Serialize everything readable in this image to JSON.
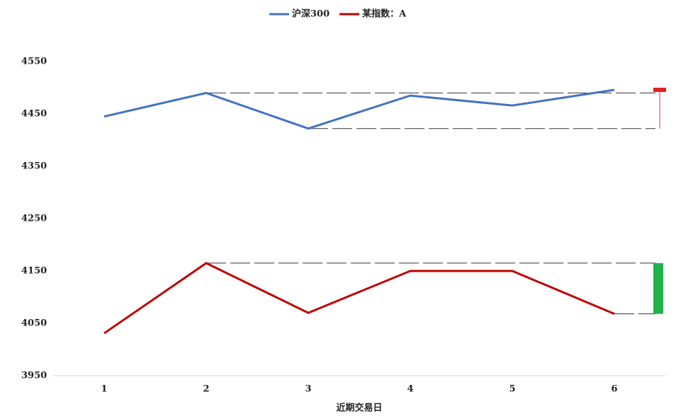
{
  "chart_data": {
    "type": "line",
    "x_label": "近期交易日",
    "categories": [
      "1",
      "2",
      "3",
      "4",
      "5",
      "6"
    ],
    "series": [
      {
        "name": "沪深300",
        "color": "#4472c4",
        "values": [
          4445,
          4490,
          4422,
          4485,
          4466,
          4496
        ]
      },
      {
        "name": "某指数：A",
        "color": "#c00000",
        "values": [
          4031,
          4165,
          4070,
          4150,
          4150,
          4068
        ]
      }
    ],
    "ylim": [
      3950,
      4550
    ],
    "yticks": [
      3950,
      4050,
      4150,
      4250,
      4350,
      4450,
      4550
    ],
    "legend": "top"
  }
}
